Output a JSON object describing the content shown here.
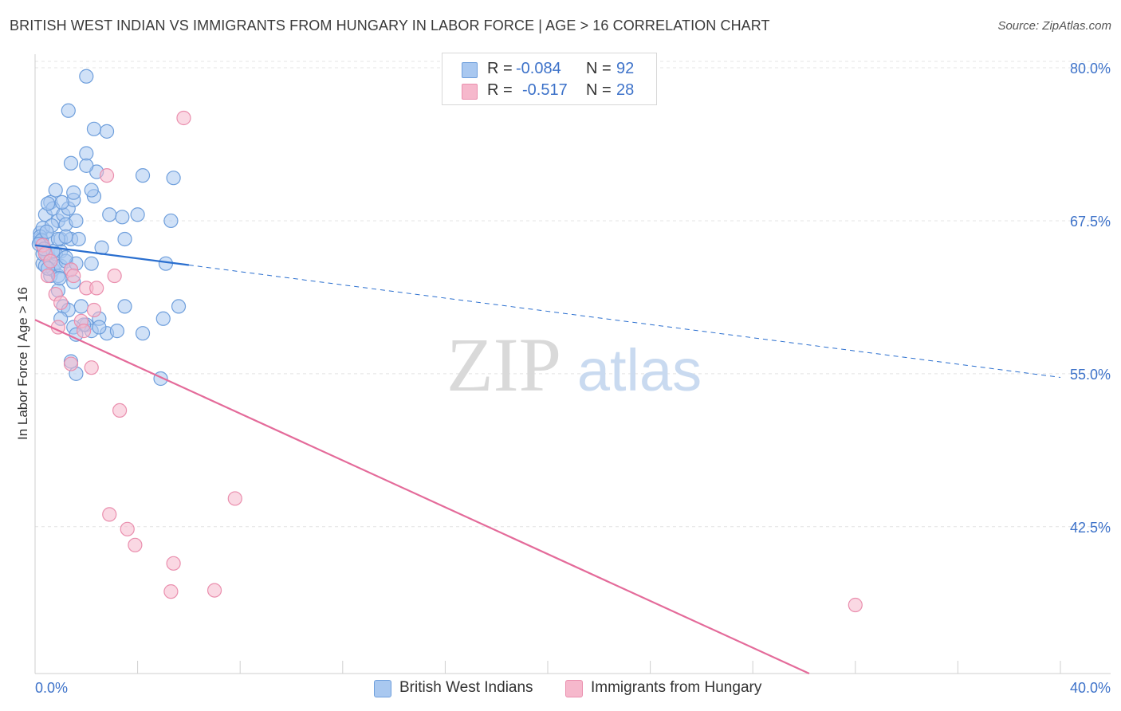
{
  "header": {
    "title": "BRITISH WEST INDIAN VS IMMIGRANTS FROM HUNGARY IN LABOR FORCE | AGE > 16 CORRELATION CHART",
    "source": "Source: ZipAtlas.com"
  },
  "watermark": {
    "zip": "ZIP",
    "atlas": "atlas"
  },
  "stats_legend": {
    "rows": [
      {
        "r_label": "R =",
        "r_value": "-0.084",
        "n_label": "N =",
        "n_value": "92",
        "color": "#a9c8f0"
      },
      {
        "r_label": "R =",
        "r_value": "-0.517",
        "n_label": "N =",
        "n_value": "28",
        "color": "#f6b8cc"
      }
    ]
  },
  "bottom_legend": {
    "items": [
      {
        "label": "British West Indians",
        "color": "#a9c8f0"
      },
      {
        "label": "Immigrants from Hungary",
        "color": "#f6b8cc"
      }
    ]
  },
  "colors": {
    "blue_fill": "#a9c8f0",
    "blue_stroke": "#6f9fdc",
    "blue_line": "#2b6fcf",
    "pink_fill": "#f6b8cc",
    "pink_stroke": "#ea8fae",
    "pink_line": "#e46b9a",
    "tick_text": "#3d72c9",
    "grid": "#e4e4e4"
  },
  "chart_data": {
    "type": "scatter",
    "title": "BRITISH WEST INDIAN VS IMMIGRANTS FROM HUNGARY IN LABOR FORCE | AGE > 16 CORRELATION CHART",
    "xlabel": "",
    "ylabel": "In Labor Force | Age > 16",
    "xlim": [
      0,
      40
    ],
    "ylim": [
      30.5,
      81.5
    ],
    "x_tick_labels": [
      "0.0%",
      "40.0%"
    ],
    "y_ticks": [
      42.5,
      55.0,
      67.5,
      80.0
    ],
    "y_tick_labels": [
      "42.5%",
      "55.0%",
      "67.5%",
      "80.0%"
    ],
    "grid": true,
    "legend_position": "top-center",
    "series": [
      {
        "name": "British West Indians",
        "r": -0.084,
        "n": 92,
        "trend": {
          "x_start": 0.0,
          "y_start": 65.5,
          "x_solid_end": 6.0,
          "x_end": 40.0,
          "y_end": 54.7
        },
        "points": [
          [
            0.2,
            66.0
          ],
          [
            0.3,
            65.5
          ],
          [
            0.2,
            66.5
          ],
          [
            0.4,
            65.0
          ],
          [
            0.3,
            64.0
          ],
          [
            0.5,
            64.5
          ],
          [
            0.6,
            63.0
          ],
          [
            0.7,
            63.5
          ],
          [
            0.8,
            64.0
          ],
          [
            0.2,
            65.8
          ],
          [
            0.9,
            63.0
          ],
          [
            1.0,
            65.0
          ],
          [
            0.5,
            66.0
          ],
          [
            0.3,
            66.9
          ],
          [
            0.4,
            68.0
          ],
          [
            0.6,
            69.0
          ],
          [
            0.7,
            68.5
          ],
          [
            0.9,
            67.5
          ],
          [
            1.1,
            68.0
          ],
          [
            1.2,
            67.2
          ],
          [
            1.0,
            66.0
          ],
          [
            1.3,
            68.5
          ],
          [
            1.4,
            66.0
          ],
          [
            1.6,
            67.5
          ],
          [
            1.5,
            69.2
          ],
          [
            1.7,
            66.0
          ],
          [
            0.5,
            68.9
          ],
          [
            0.8,
            64.8
          ],
          [
            1.0,
            63.8
          ],
          [
            1.2,
            64.2
          ],
          [
            1.4,
            63.5
          ],
          [
            1.6,
            64.0
          ],
          [
            0.9,
            61.8
          ],
          [
            1.1,
            60.5
          ],
          [
            1.3,
            60.2
          ],
          [
            1.5,
            62.5
          ],
          [
            1.8,
            60.5
          ],
          [
            2.0,
            59.0
          ],
          [
            2.2,
            58.5
          ],
          [
            1.4,
            56.0
          ],
          [
            1.6,
            55.0
          ],
          [
            1.9,
            59.0
          ],
          [
            2.5,
            59.5
          ],
          [
            2.8,
            58.3
          ],
          [
            3.2,
            58.5
          ],
          [
            3.5,
            60.5
          ],
          [
            4.2,
            58.3
          ],
          [
            5.0,
            59.5
          ],
          [
            5.6,
            60.5
          ],
          [
            5.1,
            64.0
          ],
          [
            5.3,
            67.5
          ],
          [
            5.4,
            71.0
          ],
          [
            4.2,
            71.2
          ],
          [
            4.0,
            68.0
          ],
          [
            3.4,
            67.8
          ],
          [
            3.5,
            66.0
          ],
          [
            2.9,
            68.0
          ],
          [
            2.3,
            69.5
          ],
          [
            2.2,
            70.0
          ],
          [
            2.4,
            71.5
          ],
          [
            2.8,
            74.8
          ],
          [
            2.3,
            75.0
          ],
          [
            2.0,
            73.0
          ],
          [
            1.4,
            72.2
          ],
          [
            2.0,
            72.0
          ],
          [
            1.3,
            76.5
          ],
          [
            2.0,
            79.3
          ],
          [
            0.6,
            64.2
          ],
          [
            0.3,
            64.8
          ],
          [
            0.4,
            63.8
          ],
          [
            0.9,
            66.0
          ],
          [
            0.7,
            65.0
          ],
          [
            1.2,
            66.2
          ],
          [
            0.2,
            66.2
          ],
          [
            0.25,
            65.9
          ],
          [
            0.15,
            65.6
          ],
          [
            0.5,
            63.6
          ],
          [
            1.2,
            64.5
          ],
          [
            2.2,
            64.0
          ],
          [
            1.5,
            58.8
          ],
          [
            1.6,
            58.2
          ],
          [
            2.5,
            58.8
          ],
          [
            1.0,
            59.5
          ],
          [
            4.9,
            54.6
          ],
          [
            1.5,
            69.8
          ],
          [
            0.8,
            70.0
          ],
          [
            2.6,
            65.3
          ],
          [
            0.65,
            67.1
          ],
          [
            1.05,
            69.0
          ],
          [
            0.45,
            66.6
          ],
          [
            0.35,
            65.2
          ],
          [
            0.95,
            62.8
          ]
        ]
      },
      {
        "name": "Immigrants from Hungary",
        "r": -0.517,
        "n": 28,
        "trend": {
          "x_start": 0.0,
          "y_start": 59.4,
          "x_end": 30.2,
          "y_end": 30.5
        },
        "points": [
          [
            0.3,
            65.5
          ],
          [
            0.4,
            64.8
          ],
          [
            0.5,
            63.0
          ],
          [
            0.6,
            64.2
          ],
          [
            0.8,
            61.5
          ],
          [
            1.0,
            60.8
          ],
          [
            0.9,
            58.8
          ],
          [
            1.4,
            63.5
          ],
          [
            1.5,
            63.0
          ],
          [
            1.8,
            59.3
          ],
          [
            2.0,
            62.0
          ],
          [
            1.9,
            58.5
          ],
          [
            2.3,
            60.2
          ],
          [
            2.4,
            62.0
          ],
          [
            3.1,
            63.0
          ],
          [
            1.4,
            55.8
          ],
          [
            2.2,
            55.5
          ],
          [
            3.3,
            52.0
          ],
          [
            2.9,
            43.5
          ],
          [
            3.6,
            42.3
          ],
          [
            3.9,
            41.0
          ],
          [
            5.4,
            39.5
          ],
          [
            5.3,
            37.2
          ],
          [
            7.0,
            37.3
          ],
          [
            7.8,
            44.8
          ],
          [
            5.8,
            75.9
          ],
          [
            2.8,
            71.2
          ],
          [
            32.0,
            36.1
          ]
        ]
      }
    ]
  }
}
